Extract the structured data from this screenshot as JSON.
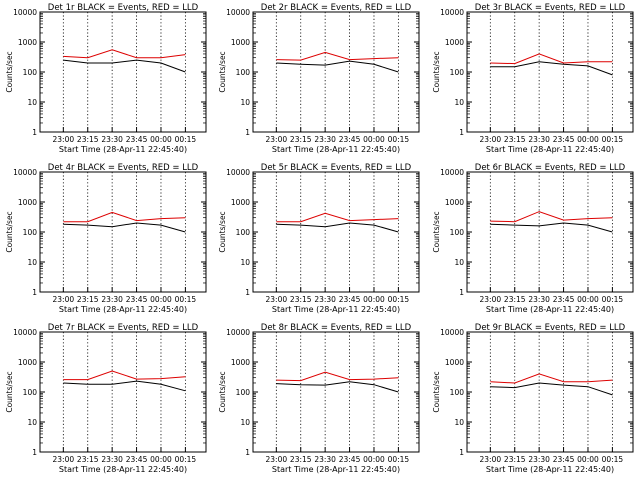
{
  "figure": {
    "subtitles": "",
    "series_colors": {
      "events": "#000000",
      "lld": "#dd0000"
    }
  },
  "chart_data": [
    {
      "type": "line",
      "title": "Det 1r BLACK = Events, RED = LLD",
      "xlabel": "Start Time (28-Apr-11 22:45:40)",
      "ylabel": "Counts/sec",
      "yscale": "log",
      "ylim": [
        1,
        10000
      ],
      "x_ticks": [
        "23:00",
        "23:15",
        "23:30",
        "23:45",
        "00:00",
        "00:15"
      ],
      "y_ticks": [
        "1",
        "10",
        "100",
        "1000",
        "10000"
      ],
      "x": [
        "23:00",
        "23:15",
        "23:30",
        "23:45",
        "00:00",
        "00:15"
      ],
      "series": [
        {
          "values": [
            250,
            200,
            200,
            250,
            200,
            100
          ]
        },
        {
          "values": [
            330,
            300,
            550,
            300,
            300,
            380
          ]
        }
      ]
    },
    {
      "type": "line",
      "title": "Det 2r BLACK = Events, RED = LLD",
      "xlabel": "Start Time (28-Apr-11 22:45:40)",
      "ylabel": "Counts/sec",
      "yscale": "log",
      "ylim": [
        1,
        10000
      ],
      "x_ticks": [
        "23:00",
        "23:15",
        "23:30",
        "23:45",
        "00:00",
        "00:15"
      ],
      "y_ticks": [
        "1",
        "10",
        "100",
        "1000",
        "10000"
      ],
      "x": [
        "23:00",
        "23:15",
        "23:30",
        "23:45",
        "00:00",
        "00:15"
      ],
      "series": [
        {
          "values": [
            200,
            180,
            170,
            230,
            180,
            100
          ]
        },
        {
          "values": [
            260,
            250,
            450,
            260,
            280,
            300
          ]
        }
      ]
    },
    {
      "type": "line",
      "title": "Det 3r BLACK = Events, RED = LLD",
      "xlabel": "Start Time (28-Apr-11 22:45:40)",
      "ylabel": "Counts/sec",
      "yscale": "log",
      "ylim": [
        1,
        10000
      ],
      "x_ticks": [
        "23:00",
        "23:15",
        "23:30",
        "23:45",
        "00:00",
        "00:15"
      ],
      "y_ticks": [
        "1",
        "10",
        "100",
        "1000",
        "10000"
      ],
      "x": [
        "23:00",
        "23:15",
        "23:30",
        "23:45",
        "00:00",
        "00:15"
      ],
      "series": [
        {
          "values": [
            150,
            150,
            220,
            180,
            160,
            80
          ]
        },
        {
          "values": [
            200,
            190,
            400,
            200,
            220,
            220
          ]
        }
      ]
    },
    {
      "type": "line",
      "title": "Det 4r BLACK = Events, RED = LLD",
      "xlabel": "Start Time (28-Apr-11 22:45:40)",
      "ylabel": "Counts/sec",
      "yscale": "log",
      "ylim": [
        1,
        10000
      ],
      "x_ticks": [
        "23:00",
        "23:15",
        "23:30",
        "23:45",
        "00:00",
        "00:15"
      ],
      "y_ticks": [
        "1",
        "10",
        "100",
        "1000",
        "10000"
      ],
      "x": [
        "23:00",
        "23:15",
        "23:30",
        "23:45",
        "00:00",
        "00:15"
      ],
      "series": [
        {
          "values": [
            180,
            170,
            150,
            200,
            170,
            100
          ]
        },
        {
          "values": [
            220,
            220,
            450,
            240,
            280,
            300
          ]
        }
      ]
    },
    {
      "type": "line",
      "title": "Det 5r BLACK = Events, RED = LLD",
      "xlabel": "Start Time (28-Apr-11 22:45:40)",
      "ylabel": "Counts/sec",
      "yscale": "log",
      "ylim": [
        1,
        10000
      ],
      "x_ticks": [
        "23:00",
        "23:15",
        "23:30",
        "23:45",
        "00:00",
        "00:15"
      ],
      "y_ticks": [
        "1",
        "10",
        "100",
        "1000",
        "10000"
      ],
      "x": [
        "23:00",
        "23:15",
        "23:30",
        "23:45",
        "00:00",
        "00:15"
      ],
      "series": [
        {
          "values": [
            180,
            170,
            150,
            200,
            170,
            100
          ]
        },
        {
          "values": [
            220,
            220,
            420,
            240,
            260,
            280
          ]
        }
      ]
    },
    {
      "type": "line",
      "title": "Det 6r BLACK = Events, RED = LLD",
      "xlabel": "Start Time (28-Apr-11 22:45:40)",
      "ylabel": "Counts/sec",
      "yscale": "log",
      "ylim": [
        1,
        10000
      ],
      "x_ticks": [
        "23:00",
        "23:15",
        "23:30",
        "23:45",
        "00:00",
        "00:15"
      ],
      "y_ticks": [
        "1",
        "10",
        "100",
        "1000",
        "10000"
      ],
      "x": [
        "23:00",
        "23:15",
        "23:30",
        "23:45",
        "00:00",
        "00:15"
      ],
      "series": [
        {
          "values": [
            180,
            170,
            160,
            200,
            170,
            100
          ]
        },
        {
          "values": [
            230,
            220,
            480,
            250,
            280,
            300
          ]
        }
      ]
    },
    {
      "type": "line",
      "title": "Det 7r BLACK = Events, RED = LLD",
      "xlabel": "Start Time (28-Apr-11 22:45:40)",
      "ylabel": "Counts/sec",
      "yscale": "log",
      "ylim": [
        1,
        10000
      ],
      "x_ticks": [
        "23:00",
        "23:15",
        "23:30",
        "23:45",
        "00:00",
        "00:15"
      ],
      "y_ticks": [
        "1",
        "10",
        "100",
        "1000",
        "10000"
      ],
      "x": [
        "23:00",
        "23:15",
        "23:30",
        "23:45",
        "00:00",
        "00:15"
      ],
      "series": [
        {
          "values": [
            200,
            180,
            180,
            230,
            180,
            110
          ]
        },
        {
          "values": [
            260,
            260,
            500,
            270,
            280,
            320
          ]
        }
      ]
    },
    {
      "type": "line",
      "title": "Det 8r BLACK = Events, RED = LLD",
      "xlabel": "Start Time (28-Apr-11 22:45:40)",
      "ylabel": "Counts/sec",
      "yscale": "log",
      "ylim": [
        1,
        10000
      ],
      "x_ticks": [
        "23:00",
        "23:15",
        "23:30",
        "23:45",
        "00:00",
        "00:15"
      ],
      "y_ticks": [
        "1",
        "10",
        "100",
        "1000",
        "10000"
      ],
      "x": [
        "23:00",
        "23:15",
        "23:30",
        "23:45",
        "00:00",
        "00:15"
      ],
      "series": [
        {
          "values": [
            190,
            175,
            170,
            220,
            175,
            100
          ]
        },
        {
          "values": [
            250,
            240,
            460,
            260,
            270,
            300
          ]
        }
      ]
    },
    {
      "type": "line",
      "title": "Det 9r BLACK = Events, RED = LLD",
      "xlabel": "Start Time (28-Apr-11 22:45:40)",
      "ylabel": "Counts/sec",
      "yscale": "log",
      "ylim": [
        1,
        10000
      ],
      "x_ticks": [
        "23:00",
        "23:15",
        "23:30",
        "23:45",
        "00:00",
        "00:15"
      ],
      "y_ticks": [
        "1",
        "10",
        "100",
        "1000",
        "10000"
      ],
      "x": [
        "23:00",
        "23:15",
        "23:30",
        "23:45",
        "00:00",
        "00:15"
      ],
      "series": [
        {
          "values": [
            150,
            140,
            200,
            170,
            150,
            80
          ]
        },
        {
          "values": [
            220,
            200,
            400,
            220,
            220,
            250
          ]
        }
      ]
    }
  ]
}
